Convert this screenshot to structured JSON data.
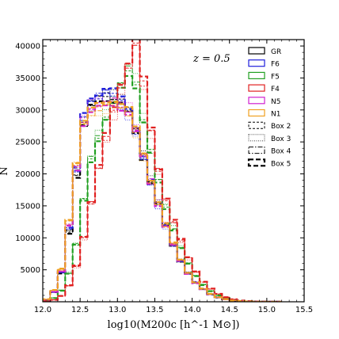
{
  "chart_data": {
    "type": "histogram",
    "title": "",
    "annotation": "z = 0.5",
    "xlabel": "log10(M200c [h^-1 M⊙])",
    "ylabel": "N",
    "xlim": [
      12.0,
      15.5
    ],
    "ylim": [
      0,
      41000
    ],
    "xticks": [
      12.0,
      12.5,
      13.0,
      13.5,
      14.0,
      14.5,
      15.0,
      15.5
    ],
    "yticks": [
      5000,
      10000,
      15000,
      20000,
      25000,
      30000,
      35000,
      40000
    ],
    "grid": false,
    "legend_position": "top-right",
    "bin_edges": [
      12.0,
      12.1,
      12.2,
      12.3,
      12.4,
      12.5,
      12.6,
      12.7,
      12.8,
      12.9,
      13.0,
      13.1,
      13.2,
      13.3,
      13.4,
      13.5,
      13.6,
      13.7,
      13.8,
      13.9,
      14.0,
      14.1,
      14.2,
      14.3,
      14.4,
      14.5,
      14.6,
      14.7,
      14.8,
      14.9,
      15.0,
      15.1,
      15.2
    ],
    "series": [
      {
        "name": "GR",
        "color": "#000000",
        "values": [
          300,
          1500,
          4500,
          11000,
          20000,
          28000,
          31000,
          32000,
          32500,
          32000,
          31500,
          30000,
          27000,
          23000,
          19000,
          15500,
          12000,
          9000,
          6500,
          4500,
          3000,
          2000,
          1200,
          700,
          400,
          200,
          100,
          50,
          20,
          10,
          5,
          0
        ]
      },
      {
        "name": "F6",
        "color": "#1f1fdc",
        "values": [
          300,
          1500,
          4600,
          11500,
          20500,
          28500,
          31000,
          32000,
          33000,
          32500,
          31000,
          29500,
          26500,
          22500,
          18500,
          15000,
          11800,
          8800,
          6300,
          4400,
          3000,
          2000,
          1200,
          700,
          400,
          200,
          100,
          50,
          20,
          10,
          5,
          0
        ]
      },
      {
        "name": "F5",
        "color": "#22a022",
        "values": [
          200,
          600,
          1800,
          4500,
          9000,
          16000,
          22500,
          26000,
          29000,
          31500,
          34000,
          36500,
          34500,
          28500,
          23500,
          19000,
          15000,
          11500,
          8500,
          6000,
          4100,
          2700,
          1700,
          1000,
          600,
          320,
          160,
          80,
          30,
          12,
          5,
          0
        ]
      },
      {
        "name": "F4",
        "color": "#e02020",
        "values": [
          100,
          300,
          900,
          2500,
          5500,
          10000,
          15500,
          21000,
          25500,
          29500,
          33500,
          37000,
          40500,
          34000,
          26500,
          20500,
          16000,
          12500,
          9500,
          6800,
          4700,
          3100,
          2000,
          1200,
          700,
          380,
          190,
          90,
          35,
          14,
          5,
          0
        ]
      },
      {
        "name": "N5",
        "color": "#d020d0",
        "values": [
          350,
          1600,
          4800,
          12000,
          21000,
          28500,
          30500,
          31000,
          31000,
          31500,
          31000,
          30000,
          27000,
          23000,
          19000,
          15500,
          12000,
          9000,
          6500,
          4500,
          3000,
          2000,
          1200,
          700,
          400,
          200,
          100,
          50,
          20,
          10,
          5,
          0
        ]
      },
      {
        "name": "N1",
        "color": "#f0a020",
        "values": [
          400,
          1800,
          5000,
          12500,
          21500,
          28000,
          29500,
          30000,
          30500,
          31000,
          30500,
          29500,
          26500,
          22800,
          18800,
          15300,
          11900,
          9000,
          6500,
          4500,
          3000,
          2000,
          1200,
          700,
          400,
          200,
          100,
          50,
          20,
          10,
          5,
          0
        ]
      }
    ],
    "boxes": [
      {
        "name": "Box 2",
        "dash": "3,2",
        "width": 1
      },
      {
        "name": "Box 3",
        "dash": "1,1.5",
        "width": 0.8
      },
      {
        "name": "Box 4",
        "dash": "6,2,1.5,2",
        "width": 1
      },
      {
        "name": "Box 5",
        "dash": "6,3",
        "width": 2.2
      }
    ]
  }
}
